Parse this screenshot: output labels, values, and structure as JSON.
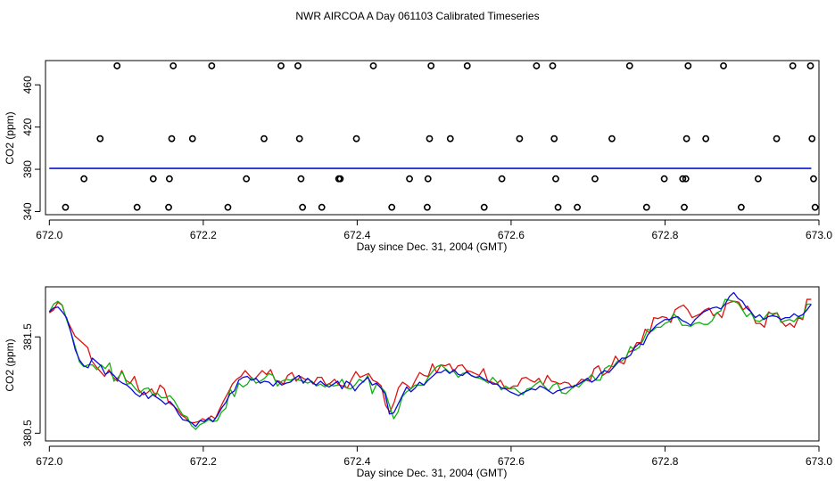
{
  "chart_data": [
    {
      "type": "scatter",
      "title": "NWR AIRCOA A  Day 061103  Calibrated Timeseries",
      "xlabel": "Day since Dec. 31, 2004 (GMT)",
      "ylabel": "CO2 (ppm)",
      "xlim": [
        671.995,
        673.0
      ],
      "ylim": [
        337,
        483
      ],
      "xticks": [
        672.0,
        672.2,
        672.4,
        672.6,
        672.8,
        673.0
      ],
      "xtick_labels": [
        "672.0",
        "672.2",
        "672.4",
        "672.6",
        "672.8",
        "673.0"
      ],
      "yticks": [
        340,
        380,
        420,
        460
      ],
      "ytick_labels": [
        "340",
        "380",
        "420",
        "460"
      ],
      "points": [
        [
          672.021,
          344
        ],
        [
          672.045,
          371
        ],
        [
          672.066,
          409
        ],
        [
          672.088,
          478
        ],
        [
          672.114,
          344
        ],
        [
          672.135,
          371
        ],
        [
          672.155,
          344
        ],
        [
          672.156,
          371
        ],
        [
          672.159,
          409
        ],
        [
          672.161,
          478
        ],
        [
          672.186,
          409
        ],
        [
          672.211,
          478
        ],
        [
          672.232,
          344
        ],
        [
          672.256,
          371
        ],
        [
          672.279,
          409
        ],
        [
          672.301,
          478
        ],
        [
          672.323,
          478
        ],
        [
          672.325,
          409
        ],
        [
          672.327,
          371
        ],
        [
          672.329,
          344
        ],
        [
          672.354,
          344
        ],
        [
          672.376,
          371
        ],
        [
          672.378,
          371
        ],
        [
          672.399,
          409
        ],
        [
          672.421,
          478
        ],
        [
          672.445,
          344
        ],
        [
          672.468,
          371
        ],
        [
          672.491,
          344
        ],
        [
          672.492,
          371
        ],
        [
          672.494,
          409
        ],
        [
          672.496,
          478
        ],
        [
          672.521,
          409
        ],
        [
          672.543,
          478
        ],
        [
          672.565,
          344
        ],
        [
          672.588,
          371
        ],
        [
          672.611,
          409
        ],
        [
          672.633,
          478
        ],
        [
          672.654,
          478
        ],
        [
          672.656,
          409
        ],
        [
          672.658,
          371
        ],
        [
          672.661,
          344
        ],
        [
          672.686,
          344
        ],
        [
          672.709,
          371
        ],
        [
          672.731,
          409
        ],
        [
          672.754,
          478
        ],
        [
          672.776,
          344
        ],
        [
          672.799,
          371
        ],
        [
          672.823,
          371
        ],
        [
          672.825,
          344
        ],
        [
          672.827,
          371
        ],
        [
          672.828,
          409
        ],
        [
          672.83,
          478
        ],
        [
          672.853,
          409
        ],
        [
          672.876,
          478
        ],
        [
          672.899,
          344
        ],
        [
          672.921,
          371
        ],
        [
          672.945,
          409
        ],
        [
          672.966,
          478
        ],
        [
          672.989,
          478
        ],
        [
          672.991,
          409
        ],
        [
          672.993,
          371
        ],
        [
          672.995,
          344
        ]
      ],
      "series": [
        {
          "name": "red",
          "color": "#e01010",
          "y": [
            381.0
          ]
        },
        {
          "name": "green",
          "color": "#10b010",
          "y": [
            381.0
          ]
        },
        {
          "name": "blue",
          "color": "#0a0adc",
          "y": [
            381.0
          ]
        }
      ]
    },
    {
      "type": "line",
      "xlabel": "Day since Dec. 31, 2004 (GMT)",
      "ylabel": "CO2 (ppm)",
      "xlim": [
        671.995,
        673.0
      ],
      "ylim": [
        380.42,
        382.02
      ],
      "xticks": [
        672.0,
        672.2,
        672.4,
        672.6,
        672.8,
        673.0
      ],
      "xtick_labels": [
        "672.0",
        "672.2",
        "672.4",
        "672.6",
        "672.8",
        "673.0"
      ],
      "yticks": [
        380.5,
        381.5
      ],
      "ytick_labels": [
        "380.5",
        "381.5"
      ],
      "x_start": 672.0,
      "x_end": 672.99,
      "series": [
        {
          "name": "red",
          "color": "#e01010",
          "values": [
            381.75,
            381.78,
            381.86,
            381.83,
            381.69,
            381.6,
            381.51,
            381.47,
            381.43,
            381.39,
            381.25,
            381.19,
            381.14,
            381.09,
            381.16,
            381.08,
            381.04,
            381.15,
            381.05,
            381.02,
            381.09,
            380.95,
            380.9,
            380.92,
            380.96,
            380.89,
            381.0,
            380.96,
            380.82,
            380.79,
            380.75,
            380.69,
            380.66,
            380.61,
            380.61,
            380.62,
            380.65,
            380.63,
            380.68,
            380.65,
            380.75,
            380.84,
            380.92,
            381.01,
            381.06,
            381.09,
            381.15,
            381.1,
            381.05,
            381.1,
            381.15,
            381.11,
            381.16,
            381.05,
            381.04,
            381.01,
            381.1,
            381.13,
            381.04,
            381.09,
            381.06,
            381.06,
            381.01,
            381.08,
            381.08,
            381.0,
            381.02,
            381.06,
            381.0,
            380.99,
            380.97,
            381.06,
            381.14,
            381.08,
            381.1,
            381.12,
            381.05,
            381.03,
            380.99,
            380.79,
            380.72,
            380.82,
            380.97,
            381.03,
            381.0,
            380.96,
            381.05,
            381.13,
            381.1,
            381.09,
            381.22,
            381.13,
            381.21,
            381.2,
            381.22,
            381.14,
            381.2,
            381.21,
            381.15,
            381.14,
            381.12,
            381.1,
            381.17,
            381.04,
            381.03,
            381.01,
            381.05,
            380.97,
            380.96,
            380.99,
            380.99,
            381.07,
            381.08,
            381.05,
            381.03,
            381.07,
            381.0,
            381.1,
            381.04,
            381.03,
            381.01,
            381.03,
            381.02,
            380.97,
            381.01,
            381.06,
            381.05,
            381.04,
            381.17,
            381.2,
            381.1,
            381.13,
            381.19,
            381.3,
            381.24,
            381.22,
            381.34,
            381.36,
            381.44,
            381.44,
            381.58,
            381.54,
            381.7,
            381.69,
            381.71,
            381.7,
            381.65,
            381.78,
            381.81,
            381.83,
            381.78,
            381.7,
            381.72,
            381.74,
            381.78,
            381.8,
            381.72,
            381.75,
            381.7,
            381.84,
            381.86,
            381.87,
            381.86,
            381.78,
            381.82,
            381.75,
            381.64,
            381.64,
            381.6,
            381.76,
            381.73,
            381.75,
            381.66,
            381.61,
            381.64,
            381.6,
            381.7,
            381.68,
            381.89,
            381.89
          ]
        },
        {
          "name": "green",
          "color": "#10b010",
          "values": [
            381.76,
            381.84,
            381.87,
            381.83,
            381.68,
            381.55,
            381.4,
            381.24,
            381.19,
            381.21,
            381.21,
            381.16,
            381.21,
            381.17,
            381.23,
            381.04,
            381.08,
            381.14,
            381.01,
            381.02,
            380.96,
            380.92,
            380.96,
            380.97,
            380.9,
            380.92,
            380.87,
            380.87,
            380.89,
            380.84,
            380.76,
            380.69,
            380.67,
            380.58,
            380.54,
            380.59,
            380.61,
            380.64,
            380.62,
            380.63,
            380.72,
            380.76,
            380.96,
            380.88,
            381.02,
            380.98,
            381.01,
            381.08,
            381.02,
            381.04,
            381.07,
            381.12,
            381.1,
            380.99,
            381.04,
            381.06,
            381.05,
            381.07,
            381.05,
            381.04,
            381.02,
            381.04,
            380.99,
            381.01,
            380.98,
            381.01,
            380.99,
            381.0,
            381.06,
            380.97,
            380.96,
            381.0,
            381.06,
            381.03,
            381.1,
            380.91,
            381.01,
            380.98,
            380.93,
            380.79,
            380.65,
            380.72,
            380.88,
            380.93,
            380.96,
            381.0,
            381.0,
            381.0,
            381.08,
            381.14,
            381.19,
            381.21,
            381.17,
            381.13,
            381.14,
            381.08,
            381.12,
            381.13,
            381.1,
            381.08,
            381.07,
            381.05,
            381.02,
            381.08,
            381.03,
            380.95,
            380.99,
            380.96,
            380.97,
            380.93,
            380.9,
            380.96,
            380.97,
            381.01,
            381.04,
            380.99,
            380.94,
            381.0,
            381.02,
            380.92,
            380.91,
            380.95,
            381.0,
            380.98,
            381.03,
            381.06,
            381.11,
            381.05,
            381.05,
            381.17,
            381.2,
            381.19,
            381.25,
            381.25,
            381.29,
            381.4,
            381.36,
            381.39,
            381.47,
            381.58,
            381.56,
            381.6,
            381.6,
            381.64,
            381.66,
            381.74,
            381.7,
            381.62,
            381.62,
            381.61,
            381.64,
            381.65,
            381.63,
            381.63,
            381.67,
            381.75,
            381.77,
            381.89,
            381.88,
            381.87,
            381.85,
            381.78,
            381.71,
            381.75,
            381.67,
            381.66,
            381.69,
            381.75,
            381.74,
            381.75,
            381.65,
            381.67,
            381.68,
            381.66,
            381.71,
            381.69,
            381.84,
            381.84
          ]
        },
        {
          "name": "blue",
          "color": "#0a0adc",
          "values": [
            381.76,
            381.8,
            381.81,
            381.76,
            381.7,
            381.55,
            381.37,
            381.26,
            381.2,
            381.18,
            381.28,
            381.24,
            381.2,
            381.11,
            381.14,
            381.1,
            381.05,
            381.02,
            381.0,
            380.96,
            380.91,
            380.88,
            380.93,
            380.86,
            380.9,
            380.87,
            380.84,
            380.8,
            380.83,
            380.78,
            380.7,
            380.64,
            380.63,
            380.61,
            380.57,
            380.63,
            380.62,
            380.66,
            380.62,
            380.68,
            380.76,
            380.82,
            380.91,
            380.94,
            381.05,
            381.08,
            381.09,
            381.05,
            381.07,
            381.02,
            381.04,
            381.03,
            380.99,
            381.04,
            381.0,
            381.02,
            381.03,
            381.07,
            381.1,
            381.02,
            381.07,
            381.03,
            381.0,
            381.04,
            381.0,
            380.98,
            381.01,
            381.04,
            380.96,
            381.04,
            381.01,
            380.94,
            381.0,
            381.04,
            381.08,
            381.0,
            381.02,
            380.97,
            380.91,
            380.7,
            380.71,
            380.8,
            380.89,
            380.98,
            380.93,
            380.97,
            381.03,
            381.0,
            381.05,
            381.09,
            381.13,
            381.13,
            381.16,
            381.12,
            381.16,
            381.11,
            381.1,
            381.14,
            381.1,
            381.08,
            381.09,
            381.06,
            381.04,
            381.01,
            381.01,
            380.97,
            380.96,
            380.93,
            380.91,
            380.89,
            380.92,
            380.94,
            380.96,
            380.95,
            380.99,
            380.97,
            380.94,
            380.91,
            380.94,
            380.95,
            380.97,
            380.98,
            380.99,
            381.01,
            381.04,
            381.07,
            381.03,
            381.06,
            381.12,
            381.15,
            381.13,
            381.18,
            381.23,
            381.28,
            381.28,
            381.31,
            381.39,
            381.43,
            381.42,
            381.52,
            381.57,
            381.62,
            381.65,
            381.68,
            381.68,
            381.7,
            381.71,
            381.67,
            381.65,
            381.62,
            381.68,
            381.72,
            381.76,
            381.78,
            381.8,
            381.81,
            381.79,
            381.84,
            381.92,
            381.96,
            381.9,
            381.87,
            381.8,
            381.76,
            381.7,
            381.73,
            381.68,
            381.71,
            381.72,
            381.71,
            381.68,
            381.7,
            381.7,
            381.74,
            381.71,
            381.73,
            381.78,
            381.84
          ]
        }
      ]
    }
  ]
}
